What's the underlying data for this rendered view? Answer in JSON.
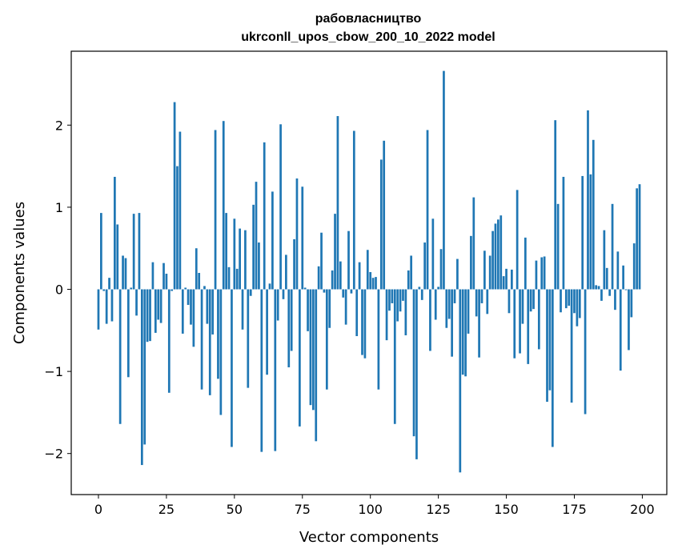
{
  "chart_data": {
    "type": "bar",
    "title": "рабовласництво",
    "subtitle": "ukrconll_upos_cbow_200_10_2022 model",
    "xlabel": "Vector components",
    "ylabel": "Components values",
    "xlim": [
      -10,
      209
    ],
    "ylim": [
      -2.5,
      2.9
    ],
    "x_ticks": [
      0,
      25,
      50,
      75,
      100,
      125,
      150,
      175,
      200
    ],
    "y_ticks": [
      -2,
      -1,
      0,
      1,
      2
    ],
    "y_tick_labels": [
      "−2",
      "−1",
      "0",
      "1",
      "2"
    ],
    "color": "#1f77b4",
    "values": [
      -0.49,
      0.93,
      -0.02,
      -0.42,
      0.14,
      -0.39,
      1.37,
      0.79,
      -1.64,
      0.41,
      0.38,
      -1.07,
      0.02,
      0.92,
      -0.32,
      0.93,
      -2.14,
      -1.89,
      -0.64,
      -0.63,
      0.33,
      -0.53,
      -0.37,
      -0.41,
      0.32,
      0.19,
      -1.26,
      -0.02,
      2.28,
      1.5,
      1.92,
      -0.54,
      0.02,
      -0.19,
      -0.43,
      -0.7,
      0.5,
      0.2,
      -1.22,
      0.04,
      -0.42,
      -1.29,
      -0.55,
      1.94,
      -1.09,
      -1.53,
      2.05,
      0.93,
      0.27,
      -1.92,
      0.86,
      0.25,
      0.74,
      -0.49,
      0.72,
      -1.2,
      -0.08,
      1.03,
      1.31,
      0.57,
      -1.98,
      1.79,
      -1.04,
      0.07,
      1.19,
      -1.97,
      -0.38,
      2.01,
      -0.12,
      0.42,
      -0.95,
      -0.75,
      0.61,
      1.35,
      -1.67,
      1.25,
      0.02,
      -0.51,
      -1.41,
      -1.47,
      -1.85,
      0.28,
      0.69,
      -0.04,
      -1.22,
      -0.47,
      0.23,
      0.92,
      2.11,
      0.34,
      -0.1,
      -0.43,
      0.71,
      -0.05,
      1.93,
      -0.57,
      0.33,
      -0.8,
      -0.84,
      0.48,
      0.21,
      0.14,
      0.15,
      -1.22,
      1.58,
      1.81,
      -0.62,
      -0.26,
      -0.17,
      -1.64,
      -0.39,
      -0.27,
      -0.14,
      -0.56,
      0.23,
      0.41,
      -1.79,
      -2.07,
      0.03,
      -0.13,
      0.57,
      1.94,
      -0.75,
      0.86,
      -0.37,
      0.03,
      0.49,
      2.66,
      -0.47,
      -0.36,
      -0.82,
      -0.17,
      0.37,
      -2.23,
      -1.04,
      -1.06,
      -0.54,
      0.65,
      1.12,
      -0.33,
      -0.83,
      -0.17,
      0.47,
      -0.3,
      0.41,
      0.71,
      0.8,
      0.85,
      0.9,
      0.16,
      0.25,
      -0.29,
      0.24,
      -0.84,
      1.21,
      -0.78,
      -0.42,
      0.63,
      -0.91,
      -0.27,
      -0.24,
      0.35,
      -0.73,
      0.39,
      0.4,
      -1.37,
      -1.23,
      -1.92,
      2.06,
      1.04,
      -0.28,
      1.37,
      -0.23,
      -0.2,
      -1.38,
      -0.29,
      -0.45,
      -0.35,
      1.38,
      -1.52,
      2.18,
      1.4,
      1.82,
      0.05,
      0.04,
      -0.14,
      0.72,
      0.26,
      -0.08,
      1.04,
      -0.25,
      0.46,
      -0.99,
      0.29,
      -0.01,
      -0.74,
      -0.34,
      0.56,
      1.23,
      1.28
    ]
  }
}
